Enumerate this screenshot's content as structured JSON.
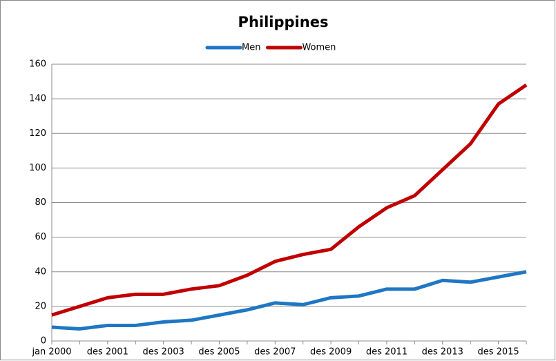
{
  "chart_data": {
    "type": "line",
    "title": "Philippines",
    "categories": [
      "jan 2000",
      null,
      "des 2001",
      null,
      "des 2003",
      null,
      "des 2005",
      null,
      "des 2007",
      null,
      "des 2009",
      null,
      "des 2011",
      null,
      "des 2013",
      null,
      "des 2015",
      null
    ],
    "series": [
      {
        "name": "Men",
        "color": "#1f77c4",
        "values": [
          8,
          7,
          9,
          9,
          11,
          12,
          15,
          18,
          22,
          21,
          25,
          26,
          30,
          30,
          35,
          34,
          37,
          40
        ]
      },
      {
        "name": "Women",
        "color": "#c00000",
        "values": [
          15,
          20,
          25,
          27,
          27,
          30,
          32,
          38,
          46,
          50,
          53,
          66,
          77,
          84,
          99,
          114,
          137,
          148
        ]
      }
    ],
    "ylim": [
      0,
      160
    ],
    "yticks": [
      0,
      20,
      40,
      60,
      80,
      100,
      120,
      140,
      160
    ],
    "grid": true,
    "legend": "top"
  }
}
